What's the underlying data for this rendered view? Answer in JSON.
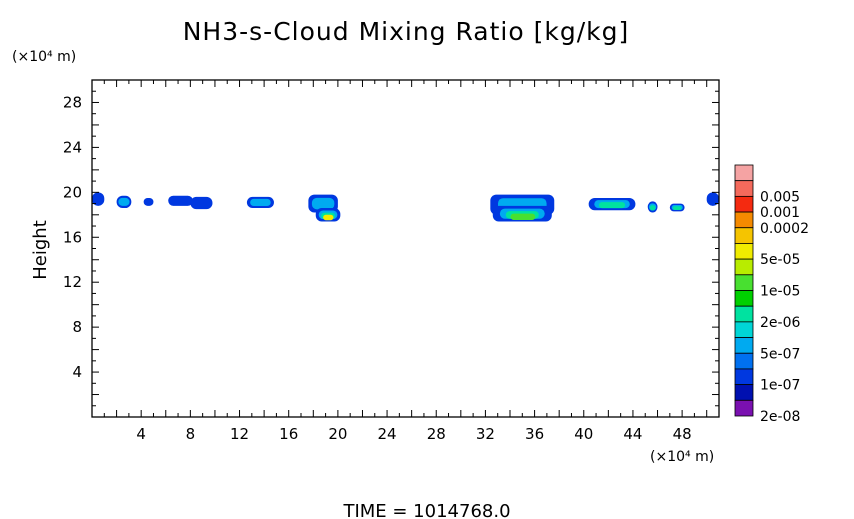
{
  "chart_data": {
    "type": "heatmap",
    "title": "NH3-s-Cloud Mixing Ratio [kg/kg]",
    "ylabel": "Height",
    "yunit": "(×10⁴ m)",
    "xunit": "(×10⁴ m)",
    "footer": "TIME  =  1014768.0",
    "xlim": [
      0,
      51
    ],
    "ylim": [
      0,
      30
    ],
    "xticks": [
      "4",
      "8",
      "12",
      "16",
      "20",
      "24",
      "28",
      "32",
      "36",
      "40",
      "44",
      "48"
    ],
    "yticks": [
      "4",
      "8",
      "12",
      "16",
      "20",
      "24",
      "28"
    ],
    "colorbar": [
      {
        "label": "",
        "color": "#f5a3a3"
      },
      {
        "label": "0.005",
        "color": "#f46a5c"
      },
      {
        "label": "0.001",
        "color": "#f42a10"
      },
      {
        "label": "0.0002",
        "color": "#f58a00"
      },
      {
        "label": "",
        "color": "#f5c400"
      },
      {
        "label": "5e-05",
        "color": "#f0ec00"
      },
      {
        "label": "",
        "color": "#b8ec00"
      },
      {
        "label": "1e-05",
        "color": "#48e030"
      },
      {
        "label": "",
        "color": "#00d000"
      },
      {
        "label": "2e-06",
        "color": "#00e2a0"
      },
      {
        "label": "",
        "color": "#00d6d6"
      },
      {
        "label": "5e-07",
        "color": "#00aaf0"
      },
      {
        "label": "",
        "color": "#0070f0"
      },
      {
        "label": "1e-07",
        "color": "#0038e0"
      },
      {
        "label": "",
        "color": "#0010b0"
      },
      {
        "label": "2e-08",
        "color": "#7a10b0"
      }
    ],
    "regions": [
      {
        "x": [
          0,
          1.0
        ],
        "y": [
          18.8,
          20.0
        ],
        "level": "1e-07"
      },
      {
        "x": [
          2.0,
          3.2
        ],
        "y": [
          18.6,
          19.7
        ],
        "level": "5e-07"
      },
      {
        "x": [
          4.2,
          5.0
        ],
        "y": [
          18.8,
          19.5
        ],
        "level": "1e-07"
      },
      {
        "x": [
          6.2,
          8.2
        ],
        "y": [
          18.8,
          19.7
        ],
        "level": "1e-07"
      },
      {
        "x": [
          8.0,
          9.8
        ],
        "y": [
          18.5,
          19.6
        ],
        "level": "1e-07"
      },
      {
        "x": [
          12.6,
          14.8
        ],
        "y": [
          18.6,
          19.6
        ],
        "level": "5e-07"
      },
      {
        "x": [
          17.6,
          20.0
        ],
        "y": [
          18.2,
          19.8
        ],
        "level": "5e-07"
      },
      {
        "x": [
          18.2,
          20.2
        ],
        "y": [
          17.4,
          18.6
        ],
        "level": "5e-05"
      },
      {
        "x": [
          32.4,
          37.6
        ],
        "y": [
          18.0,
          19.8
        ],
        "level": "5e-07"
      },
      {
        "x": [
          32.6,
          37.4
        ],
        "y": [
          17.4,
          18.8
        ],
        "level": "1e-05"
      },
      {
        "x": [
          40.4,
          44.2
        ],
        "y": [
          18.4,
          19.5
        ],
        "level": "2e-06"
      },
      {
        "x": [
          45.2,
          46.0
        ],
        "y": [
          18.2,
          19.2
        ],
        "level": "2e-06"
      },
      {
        "x": [
          47.0,
          48.2
        ],
        "y": [
          18.3,
          19.0
        ],
        "level": "2e-06"
      },
      {
        "x": [
          50.0,
          51.0
        ],
        "y": [
          18.8,
          20.0
        ],
        "level": "1e-07"
      }
    ]
  }
}
